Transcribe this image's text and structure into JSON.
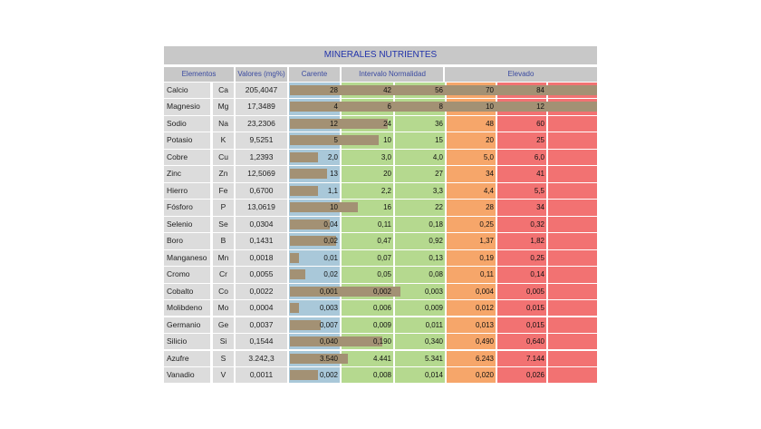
{
  "table": {
    "title": "MINERALES NUTRIENTES",
    "headers": {
      "elements": "Elementos",
      "values": "Valores (mg%)",
      "deficient": "Carente",
      "normal": "Intervalo Normalidad",
      "high": "Elevado"
    },
    "colors": {
      "deficient": "#a9c8d9",
      "normal": "#b5d98f",
      "high_low": "#f6a66a",
      "high": "#f27272",
      "bar": "#a39174"
    },
    "rows": [
      {
        "name": "Calcio",
        "symbol": "Ca",
        "value": "205,4047",
        "ticks": [
          "28",
          "42",
          "56",
          "70",
          "84"
        ],
        "bar_fraction": 1.0
      },
      {
        "name": "Magnesio",
        "symbol": "Mg",
        "value": "17,3489",
        "ticks": [
          "4",
          "6",
          "8",
          "10",
          "12"
        ],
        "bar_fraction": 1.0
      },
      {
        "name": "Sodio",
        "symbol": "Na",
        "value": "23,2306",
        "ticks": [
          "12",
          "24",
          "36",
          "48",
          "60"
        ],
        "bar_fraction": 0.32
      },
      {
        "name": "Potasio",
        "symbol": "K",
        "value": "9,5251",
        "ticks": [
          "5",
          "10",
          "15",
          "20",
          "25"
        ],
        "bar_fraction": 0.29
      },
      {
        "name": "Cobre",
        "symbol": "Cu",
        "value": "1,2393",
        "ticks": [
          "2,0",
          "3,0",
          "4,0",
          "5,0",
          "6,0"
        ],
        "bar_fraction": 0.09
      },
      {
        "name": "Zinc",
        "symbol": "Zn",
        "value": "12,5069",
        "ticks": [
          "13",
          "20",
          "27",
          "34",
          "41"
        ],
        "bar_fraction": 0.12
      },
      {
        "name": "Hierro",
        "symbol": "Fe",
        "value": "0,6700",
        "ticks": [
          "1,1",
          "2,2",
          "3,3",
          "4,4",
          "5,5"
        ],
        "bar_fraction": 0.09
      },
      {
        "name": "Fósforo",
        "symbol": "P",
        "value": "13,0619",
        "ticks": [
          "10",
          "16",
          "22",
          "28",
          "34"
        ],
        "bar_fraction": 0.22
      },
      {
        "name": "Selenio",
        "symbol": "Se",
        "value": "0,0304",
        "ticks": [
          "0,04",
          "0,11",
          "0,18",
          "0,25",
          "0,32"
        ],
        "bar_fraction": 0.13
      },
      {
        "name": "Boro",
        "symbol": "B",
        "value": "0,1431",
        "ticks": [
          "0,02",
          "0,47",
          "0,92",
          "1,37",
          "1,82"
        ],
        "bar_fraction": 0.15
      },
      {
        "name": "Manganeso",
        "symbol": "Mn",
        "value": "0,0018",
        "ticks": [
          "0,01",
          "0,07",
          "0,13",
          "0,19",
          "0,25"
        ],
        "bar_fraction": 0.03
      },
      {
        "name": "Cromo",
        "symbol": "Cr",
        "value": "0,0055",
        "ticks": [
          "0,02",
          "0,05",
          "0,08",
          "0,11",
          "0,14"
        ],
        "bar_fraction": 0.05
      },
      {
        "name": "Cobalto",
        "symbol": "Co",
        "value": "0,0022",
        "ticks": [
          "0,001",
          "0,002",
          "0,003",
          "0,004",
          "0,005"
        ],
        "bar_fraction": 0.36
      },
      {
        "name": "Molibdeno",
        "symbol": "Mo",
        "value": "0,0004",
        "ticks": [
          "0,003",
          "0,006",
          "0,009",
          "0,012",
          "0,015"
        ],
        "bar_fraction": 0.03
      },
      {
        "name": "Germanio",
        "symbol": "Ge",
        "value": "0,0037",
        "ticks": [
          "0,007",
          "0,009",
          "0,011",
          "0,013",
          "0,015"
        ],
        "bar_fraction": 0.1
      },
      {
        "name": "Silicio",
        "symbol": "Si",
        "value": "0,1544",
        "ticks": [
          "0,040",
          "0,190",
          "0,340",
          "0,490",
          "0,640"
        ],
        "bar_fraction": 0.3
      },
      {
        "name": "Azufre",
        "symbol": "S",
        "value": "3.242,3",
        "ticks": [
          "3.540",
          "4.441",
          "5.341",
          "6.243",
          "7.144"
        ],
        "bar_fraction": 0.19
      },
      {
        "name": "Vanadio",
        "symbol": "V",
        "value": "0,0011",
        "ticks": [
          "0,002",
          "0,008",
          "0,014",
          "0,020",
          "0,026"
        ],
        "bar_fraction": 0.09
      }
    ]
  }
}
